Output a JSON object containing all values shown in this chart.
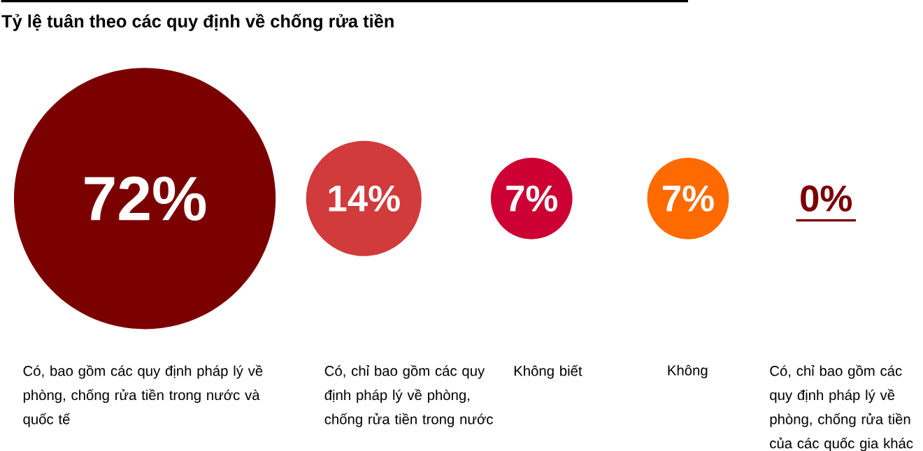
{
  "chart_data": {
    "type": "other",
    "title": "Tỷ lệ tuân theo các quy định về chống rửa tiền",
    "categories": [
      "Có, bao gồm các quy định pháp lý về phòng, chống rửa tiền trong nước và quốc tế",
      "Có, chỉ bao gồm các quy định pháp lý về phòng, chống rửa tiền trong nước",
      "Không biết",
      "Không",
      "Có, chỉ bao gồm các quy định pháp lý về phòng, chống rửa tiền của các quốc gia khác"
    ],
    "values": [
      72,
      14,
      7,
      7,
      0
    ],
    "value_labels": [
      "72%",
      "14%",
      "7%",
      "7%",
      "0%"
    ],
    "colors": [
      "#7b0000",
      "#d13b3b",
      "#cc0033",
      "#ff6a00",
      "#7b0000"
    ],
    "data_labels": true
  }
}
